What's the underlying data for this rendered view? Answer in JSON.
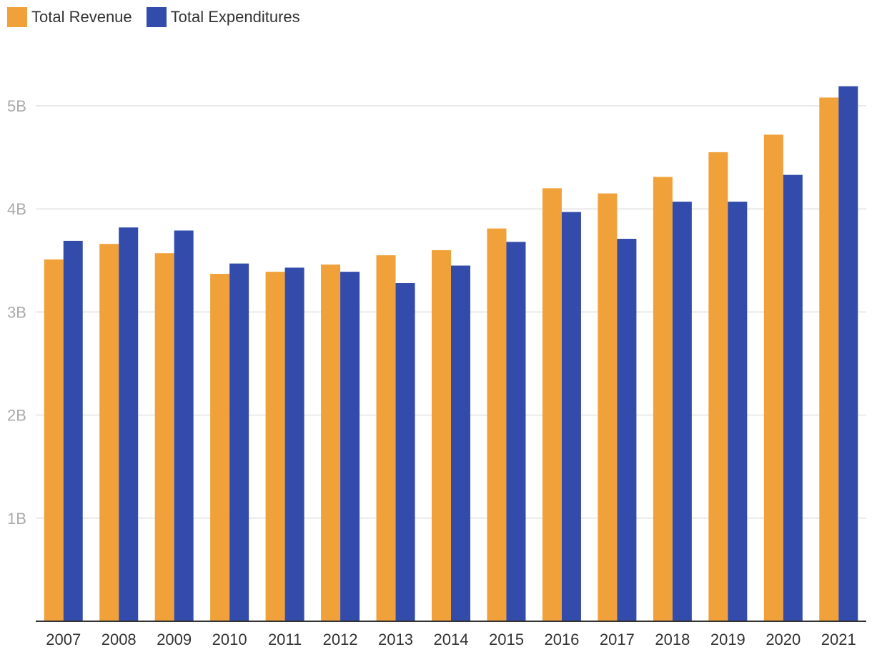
{
  "chart_data": {
    "type": "bar",
    "title": "",
    "xlabel": "",
    "ylabel": "",
    "categories": [
      "2007",
      "2008",
      "2009",
      "2010",
      "2011",
      "2012",
      "2013",
      "2014",
      "2015",
      "2016",
      "2017",
      "2018",
      "2019",
      "2020",
      "2021"
    ],
    "series": [
      {
        "name": "Total Revenue",
        "color": "#F0A13A",
        "values": [
          3.51,
          3.66,
          3.57,
          3.37,
          3.39,
          3.46,
          3.55,
          3.6,
          3.81,
          4.2,
          4.15,
          4.31,
          4.55,
          4.72,
          5.08
        ]
      },
      {
        "name": "Total Expenditures",
        "color": "#334BAA",
        "values": [
          3.69,
          3.82,
          3.79,
          3.47,
          3.43,
          3.39,
          3.28,
          3.45,
          3.68,
          3.97,
          3.71,
          4.07,
          4.07,
          4.33,
          5.19
        ]
      }
    ],
    "yticks": [
      {
        "value": 1,
        "label": "1B"
      },
      {
        "value": 2,
        "label": "2B"
      },
      {
        "value": 3,
        "label": "3B"
      },
      {
        "value": 4,
        "label": "4B"
      },
      {
        "value": 5,
        "label": "5B"
      }
    ],
    "ylim": [
      0,
      5.5
    ],
    "grid": true,
    "legend_position": "top-left"
  }
}
